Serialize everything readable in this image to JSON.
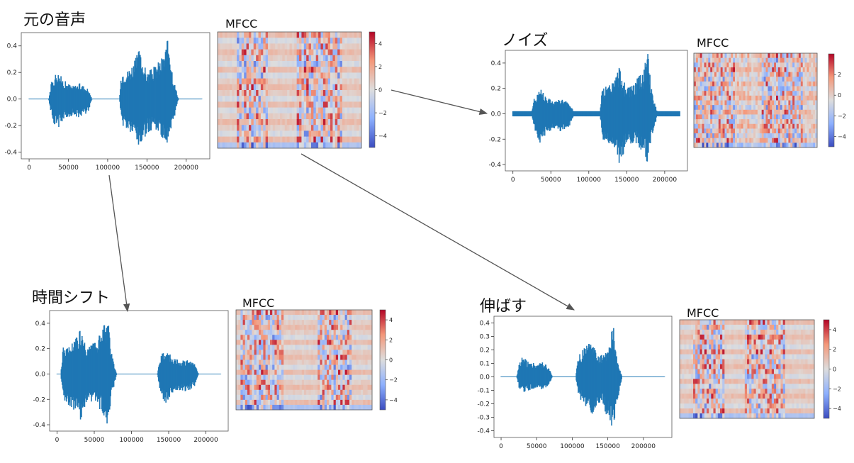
{
  "colors": {
    "waveform": "#1f77b4",
    "frame": "#555555",
    "arrow": "#555555",
    "colormap": [
      "#3b4cc0",
      "#8db0fe",
      "#dddddd",
      "#f4987a",
      "#b40426"
    ]
  },
  "panels": [
    {
      "id": "original",
      "title": "元の音声",
      "mfcc_label": "MFCC",
      "chart_data": {
        "type": "line",
        "x_ticks": [
          "0",
          "50000",
          "100000",
          "150000",
          "200000"
        ],
        "y_ticks": [
          "0.4",
          "0.2",
          "0.0",
          "-0.2",
          "-0.4"
        ],
        "xlim": [
          -10000,
          230000
        ],
        "ylim": [
          -0.45,
          0.5
        ],
        "noise_floor": 0.002,
        "segments": [
          {
            "x": [
              0,
              25000,
              28000,
              35000,
              45000,
              55000,
              65000,
              75000,
              80000,
              220000
            ],
            "upper": [
              0.002,
              0.002,
              0.12,
              0.22,
              0.14,
              0.1,
              0.12,
              0.08,
              0.002,
              0.002
            ],
            "lower": [
              -0.002,
              -0.002,
              -0.12,
              -0.24,
              -0.15,
              -0.13,
              -0.14,
              -0.1,
              -0.002,
              -0.002
            ]
          },
          {
            "x": [
              0,
              115000,
              118000,
              125000,
              135000,
              140000,
              150000,
              160000,
              170000,
              178000,
              183000,
              190000,
              220000
            ],
            "upper": [
              0.002,
              0.002,
              0.22,
              0.22,
              0.3,
              0.38,
              0.2,
              0.25,
              0.33,
              0.48,
              0.18,
              0.002,
              0.002
            ],
            "lower": [
              -0.002,
              -0.002,
              -0.2,
              -0.25,
              -0.3,
              -0.4,
              -0.26,
              -0.22,
              -0.3,
              -0.4,
              -0.2,
              -0.002,
              -0.002
            ]
          }
        ]
      },
      "mfcc_chart": {
        "type": "heatmap",
        "colorbar_ticks": [
          "4",
          "2",
          "0",
          "−2",
          "−4"
        ],
        "vmin": -5,
        "vmax": 5
      }
    },
    {
      "id": "noise",
      "title": "ノイズ",
      "mfcc_label": "MFCC",
      "chart_data": {
        "type": "line",
        "x_ticks": [
          "0",
          "50000",
          "100000",
          "150000",
          "200000"
        ],
        "y_ticks": [
          "0.4",
          "0.2",
          "0.0",
          "-0.2",
          "-0.4"
        ],
        "xlim": [
          -10000,
          230000
        ],
        "ylim": [
          -0.45,
          0.5
        ],
        "noise_floor": 0.02,
        "segments": [
          {
            "x": [
              0,
              25000,
              28000,
              35000,
              45000,
              55000,
              65000,
              75000,
              80000,
              220000
            ],
            "upper": [
              0.02,
              0.02,
              0.12,
              0.22,
              0.14,
              0.1,
              0.12,
              0.08,
              0.02,
              0.02
            ],
            "lower": [
              -0.02,
              -0.02,
              -0.12,
              -0.24,
              -0.15,
              -0.13,
              -0.14,
              -0.1,
              -0.02,
              -0.02
            ]
          },
          {
            "x": [
              0,
              115000,
              118000,
              125000,
              135000,
              140000,
              150000,
              160000,
              170000,
              178000,
              183000,
              190000,
              220000
            ],
            "upper": [
              0.02,
              0.02,
              0.22,
              0.22,
              0.3,
              0.38,
              0.2,
              0.25,
              0.33,
              0.48,
              0.18,
              0.02,
              0.02
            ],
            "lower": [
              -0.02,
              -0.02,
              -0.2,
              -0.25,
              -0.3,
              -0.4,
              -0.26,
              -0.22,
              -0.3,
              -0.4,
              -0.2,
              -0.02,
              -0.02
            ]
          }
        ]
      },
      "mfcc_chart": {
        "type": "heatmap",
        "colorbar_ticks": [
          "2",
          "0",
          "−2",
          "−4"
        ],
        "vmin": -5,
        "vmax": 4
      }
    },
    {
      "id": "timeshift",
      "title": "時間シフト",
      "mfcc_label": "MFCC",
      "chart_data": {
        "type": "line",
        "x_ticks": [
          "0",
          "50000",
          "100000",
          "150000",
          "200000"
        ],
        "y_ticks": [
          "0.4",
          "0.2",
          "0.0",
          "-0.2",
          "-0.4"
        ],
        "xlim": [
          -10000,
          230000
        ],
        "ylim": [
          -0.45,
          0.5
        ],
        "noise_floor": 0.002,
        "segments": [
          {
            "x": [
              0,
              5000,
              8000,
              15000,
              25000,
              30000,
              40000,
              50000,
              60000,
              68000,
              73000,
              80000,
              220000
            ],
            "upper": [
              0.002,
              0.002,
              0.22,
              0.22,
              0.3,
              0.38,
              0.2,
              0.25,
              0.33,
              0.48,
              0.18,
              0.002,
              0.002
            ],
            "lower": [
              -0.002,
              -0.002,
              -0.2,
              -0.25,
              -0.3,
              -0.4,
              -0.26,
              -0.22,
              -0.3,
              -0.4,
              -0.2,
              -0.002,
              -0.002
            ]
          },
          {
            "x": [
              0,
              135000,
              138000,
              145000,
              155000,
              165000,
              175000,
              185000,
              190000,
              220000
            ],
            "upper": [
              0.002,
              0.002,
              0.12,
              0.22,
              0.14,
              0.1,
              0.12,
              0.08,
              0.002,
              0.002
            ],
            "lower": [
              -0.002,
              -0.002,
              -0.12,
              -0.24,
              -0.15,
              -0.13,
              -0.14,
              -0.1,
              -0.002,
              -0.002
            ]
          }
        ]
      },
      "mfcc_chart": {
        "type": "heatmap",
        "colorbar_ticks": [
          "4",
          "2",
          "0",
          "−2",
          "−4"
        ],
        "vmin": -5,
        "vmax": 5
      }
    },
    {
      "id": "stretch",
      "title": "伸ばす",
      "mfcc_label": "MFCC",
      "chart_data": {
        "type": "line",
        "x_ticks": [
          "0",
          "50000",
          "100000",
          "150000",
          "200000"
        ],
        "y_ticks": [
          "0.4",
          "0.3",
          "0.2",
          "0.1",
          "0.0",
          "-0.1",
          "-0.2",
          "-0.3",
          "-0.4"
        ],
        "xlim": [
          -10000,
          240000
        ],
        "ylim": [
          -0.45,
          0.45
        ],
        "noise_floor": 0.002,
        "segments": [
          {
            "x": [
              0,
              22000,
              25000,
              30000,
              40000,
              50000,
              60000,
              68000,
              72000,
              230000
            ],
            "upper": [
              0.002,
              0.002,
              0.1,
              0.15,
              0.12,
              0.1,
              0.12,
              0.06,
              0.002,
              0.002
            ],
            "lower": [
              -0.002,
              -0.002,
              -0.08,
              -0.12,
              -0.1,
              -0.08,
              -0.1,
              -0.05,
              -0.002,
              -0.002
            ]
          },
          {
            "x": [
              0,
              105000,
              108000,
              115000,
              122000,
              128000,
              135000,
              142000,
              150000,
              158000,
              163000,
              170000,
              230000
            ],
            "upper": [
              0.002,
              0.002,
              0.15,
              0.2,
              0.25,
              0.28,
              0.15,
              0.17,
              0.2,
              0.4,
              0.12,
              0.002,
              0.002
            ],
            "lower": [
              -0.002,
              -0.002,
              -0.14,
              -0.2,
              -0.25,
              -0.28,
              -0.22,
              -0.2,
              -0.32,
              -0.4,
              -0.2,
              -0.002,
              -0.002
            ]
          }
        ]
      },
      "mfcc_chart": {
        "type": "heatmap",
        "colorbar_ticks": [
          "4",
          "2",
          "0",
          "−2",
          "−4"
        ],
        "vmin": -5,
        "vmax": 5
      }
    }
  ]
}
